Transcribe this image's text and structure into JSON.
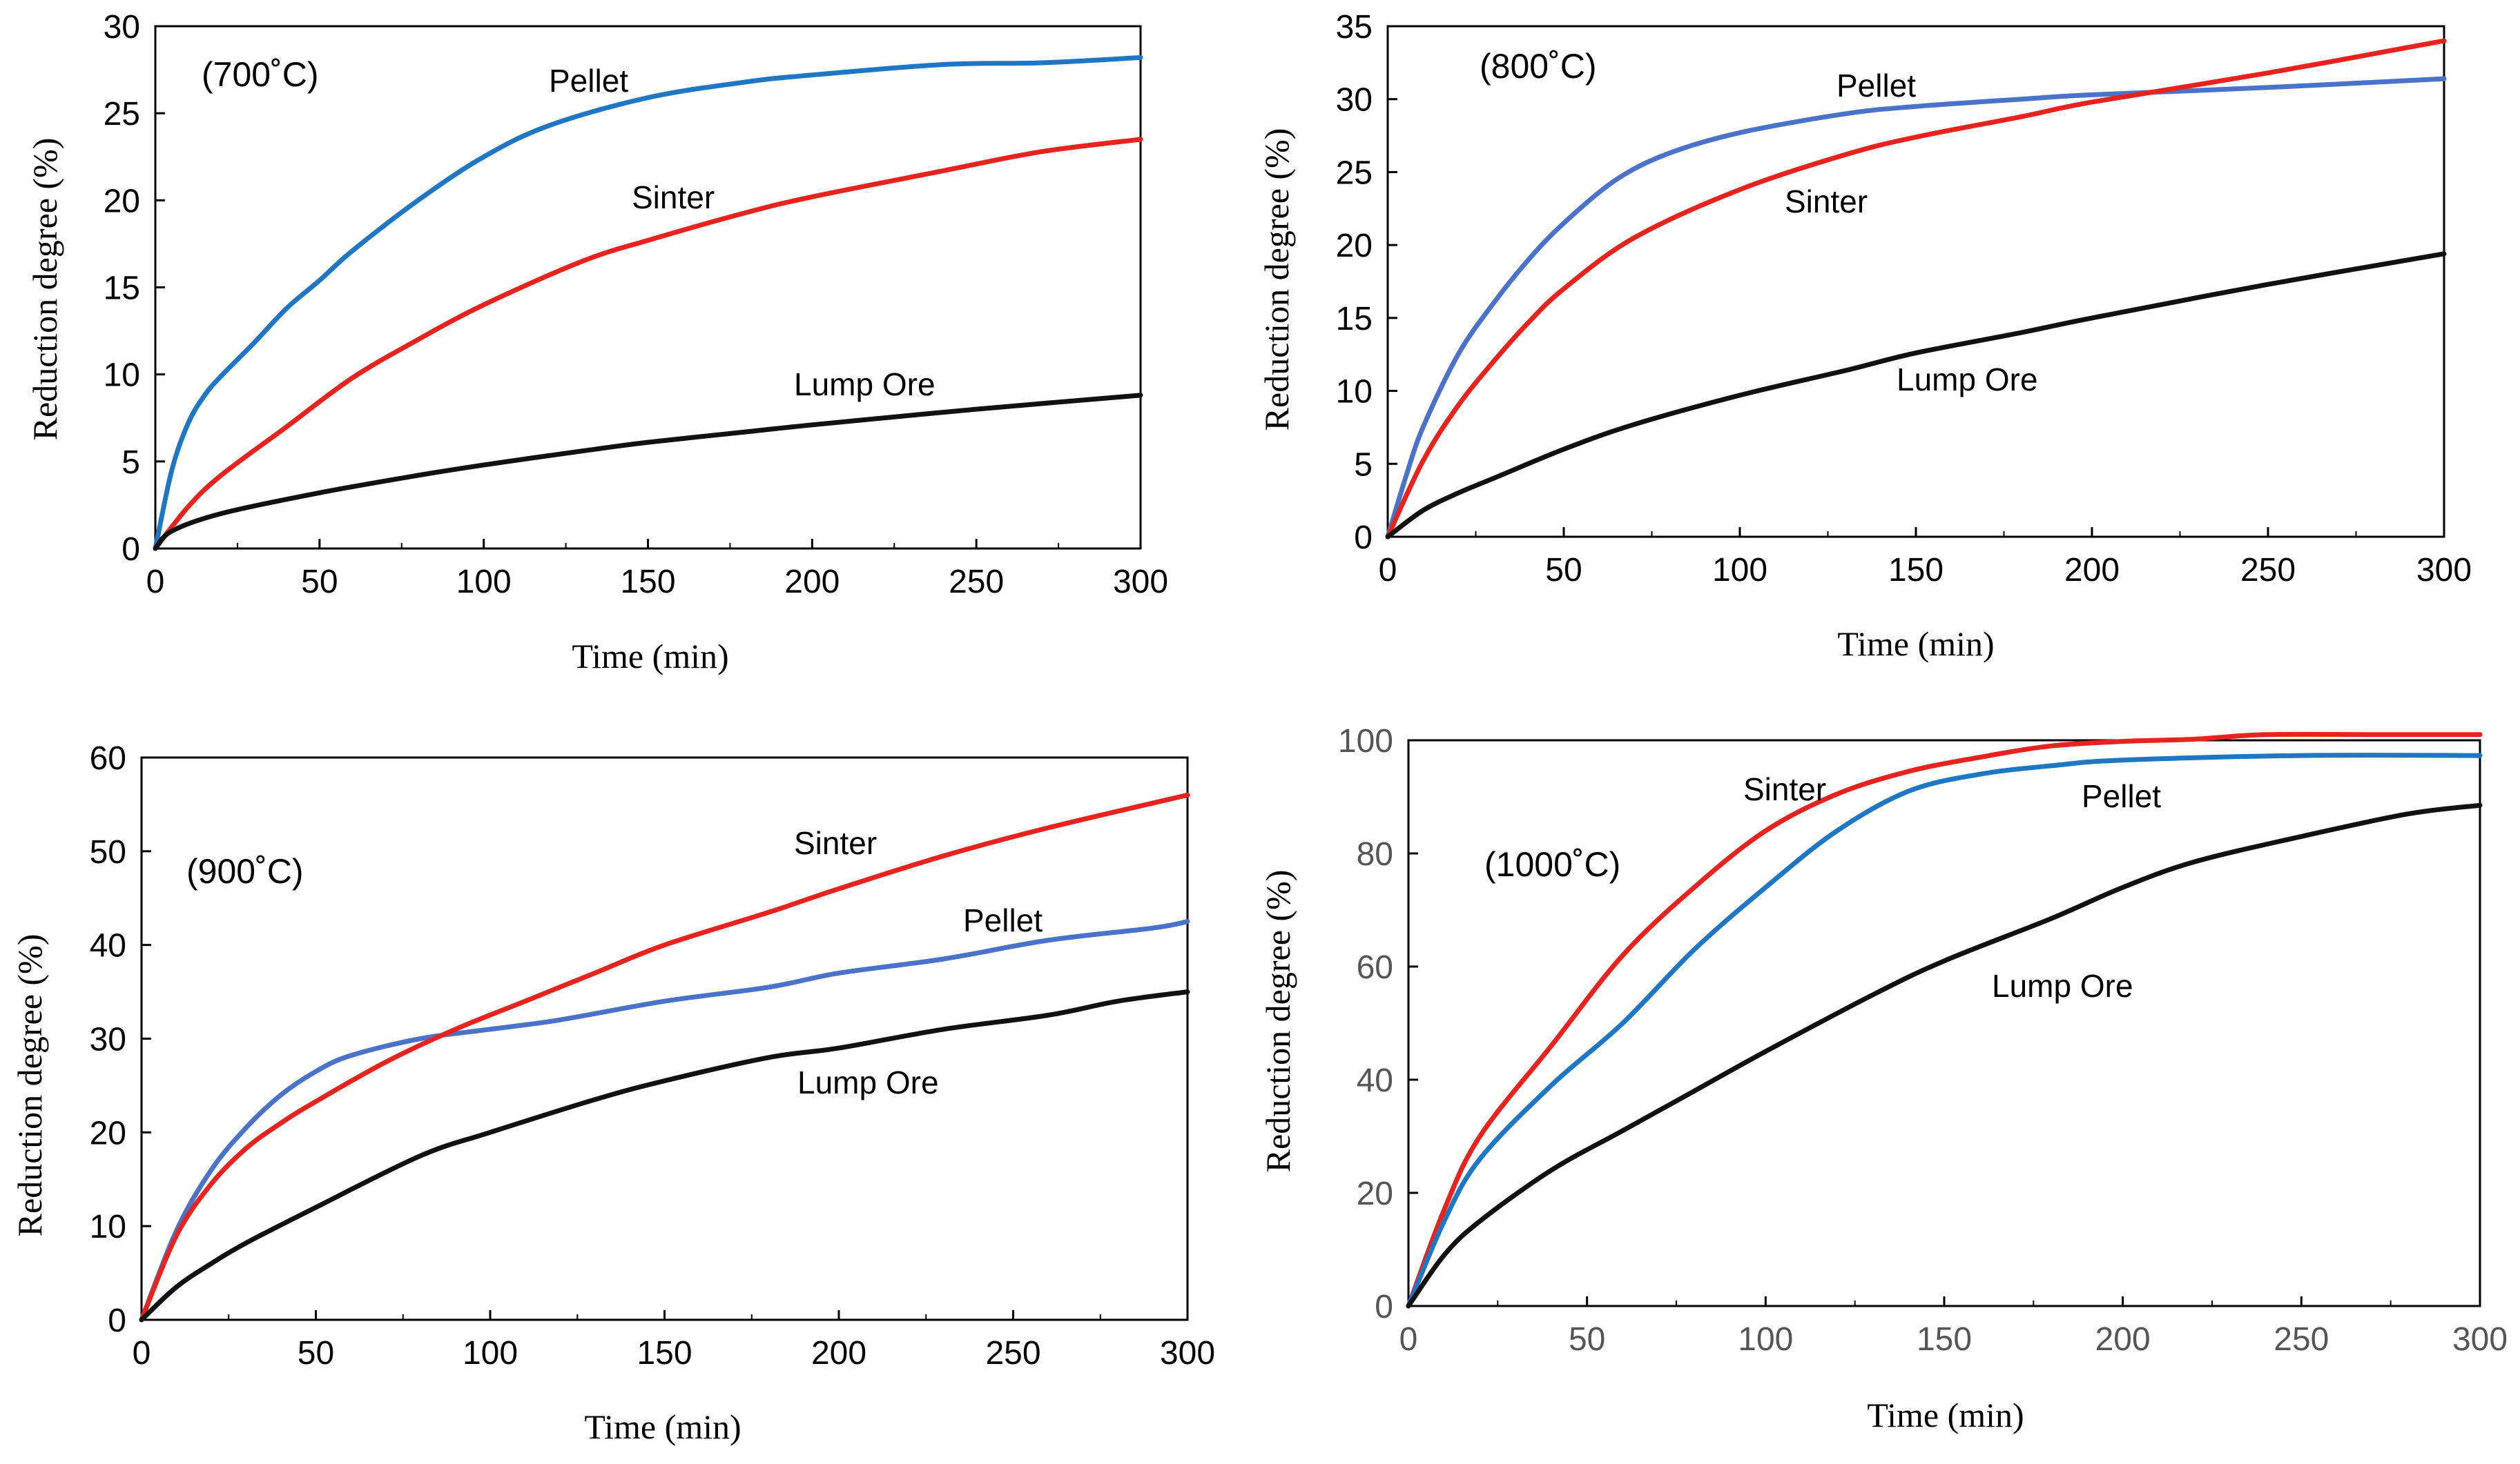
{
  "figure": "reduction-degree-panels",
  "chart_data": [
    {
      "type": "line",
      "panel_label": "(700˚C)",
      "xlabel": "Time (min)",
      "ylabel": "Reduction degree (%)",
      "xlim": [
        0,
        300
      ],
      "ylim": [
        0,
        30
      ],
      "xticks": [
        0,
        50,
        100,
        150,
        200,
        250,
        300
      ],
      "yticks": [
        0,
        5,
        10,
        15,
        20,
        25,
        30
      ],
      "series": [
        {
          "name": "Pellet",
          "color": "#1f77c4",
          "x": [
            0,
            5,
            10,
            15,
            20,
            30,
            40,
            50,
            60,
            80,
            100,
            120,
            150,
            180,
            200,
            240,
            270,
            300
          ],
          "y": [
            0,
            4.5,
            7.2,
            8.8,
            9.9,
            11.8,
            13.8,
            15.4,
            17.1,
            20.0,
            22.5,
            24.3,
            25.9,
            26.8,
            27.2,
            27.8,
            27.9,
            28.2
          ]
        },
        {
          "name": "Sinter",
          "color": "#e8231d",
          "x": [
            0,
            10,
            20,
            40,
            60,
            80,
            100,
            130,
            150,
            180,
            200,
            240,
            270,
            300
          ],
          "y": [
            0,
            2.4,
            4.2,
            7.0,
            9.8,
            12.0,
            14.0,
            16.5,
            17.7,
            19.3,
            20.2,
            21.7,
            22.8,
            23.5
          ]
        },
        {
          "name": "Lump Ore",
          "color": "#111111",
          "x": [
            0,
            5,
            20,
            50,
            80,
            100,
            130,
            150,
            180,
            200,
            250,
            300
          ],
          "y": [
            0,
            1.0,
            2.0,
            3.2,
            4.2,
            4.8,
            5.6,
            6.1,
            6.7,
            7.1,
            8.0,
            8.8
          ]
        }
      ]
    },
    {
      "type": "line",
      "panel_label": "(800˚C)",
      "xlabel": "Time (min)",
      "ylabel": "Reduction degree (%)",
      "xlim": [
        0,
        300
      ],
      "ylim": [
        0,
        35
      ],
      "xticks": [
        0,
        50,
        100,
        150,
        200,
        250,
        300
      ],
      "yticks": [
        0,
        5,
        10,
        15,
        20,
        25,
        30,
        35
      ],
      "series": [
        {
          "name": "Pellet",
          "color": "#4a72c9",
          "x": [
            0,
            5,
            10,
            20,
            30,
            40,
            50,
            65,
            80,
            100,
            130,
            150,
            180,
            200,
            250,
            300
          ],
          "y": [
            0,
            4.0,
            7.5,
            12.5,
            16.0,
            19.0,
            21.5,
            24.5,
            26.3,
            27.7,
            29.0,
            29.5,
            30.0,
            30.3,
            30.8,
            31.4
          ]
        },
        {
          "name": "Sinter",
          "color": "#e8231d",
          "x": [
            0,
            10,
            20,
            30,
            40,
            50,
            70,
            100,
            130,
            150,
            180,
            200,
            250,
            300
          ],
          "y": [
            0,
            5.2,
            9.0,
            12.0,
            14.7,
            17.0,
            20.5,
            23.8,
            26.2,
            27.4,
            28.8,
            29.8,
            31.8,
            34.0
          ]
        },
        {
          "name": "Lump Ore",
          "color": "#111111",
          "x": [
            0,
            10,
            20,
            30,
            50,
            70,
            100,
            130,
            150,
            180,
            200,
            250,
            300
          ],
          "y": [
            0,
            1.8,
            3.0,
            4.0,
            6.0,
            7.7,
            9.7,
            11.4,
            12.6,
            14.0,
            15.0,
            17.3,
            19.4
          ]
        }
      ]
    },
    {
      "type": "line",
      "panel_label": "(900˚C)",
      "xlabel": "Time (min)",
      "ylabel": "Reduction degree (%)",
      "xlim": [
        0,
        300
      ],
      "ylim": [
        0,
        60
      ],
      "xticks": [
        0,
        50,
        100,
        150,
        200,
        250,
        300
      ],
      "yticks": [
        0,
        10,
        20,
        30,
        40,
        50,
        60
      ],
      "series": [
        {
          "name": "Pellet",
          "color": "#4a72c9",
          "x": [
            0,
            10,
            20,
            30,
            40,
            50,
            60,
            80,
            100,
            120,
            150,
            180,
            200,
            230,
            260,
            290,
            300
          ],
          "y": [
            0,
            9.5,
            16.0,
            20.5,
            24.0,
            26.5,
            28.2,
            30.0,
            31.0,
            32.0,
            34.0,
            35.5,
            37.0,
            38.5,
            40.5,
            41.8,
            42.5
          ]
        },
        {
          "name": "Sinter",
          "color": "#e8231d",
          "x": [
            0,
            10,
            20,
            30,
            40,
            50,
            70,
            90,
            110,
            130,
            150,
            180,
            200,
            230,
            260,
            300
          ],
          "y": [
            0,
            9.0,
            14.5,
            18.3,
            21.0,
            23.3,
            27.5,
            31.0,
            34.0,
            37.0,
            40.0,
            43.5,
            46.0,
            49.5,
            52.5,
            56.0
          ]
        },
        {
          "name": "Lump Ore",
          "color": "#111111",
          "x": [
            0,
            10,
            20,
            30,
            50,
            80,
            100,
            130,
            150,
            180,
            200,
            230,
            260,
            280,
            300
          ],
          "y": [
            0,
            3.5,
            6.0,
            8.2,
            12.0,
            17.5,
            20.0,
            23.5,
            25.5,
            28.0,
            29.0,
            31.0,
            32.5,
            34.0,
            35.0
          ]
        }
      ]
    },
    {
      "type": "line",
      "panel_label": "(1000˚C)",
      "xlabel": "Time (min)",
      "ylabel": "Reduction degree (%)",
      "xlim": [
        0,
        300
      ],
      "ylim": [
        0,
        100
      ],
      "xticks": [
        0,
        50,
        100,
        150,
        200,
        250,
        300
      ],
      "yticks": [
        0,
        20,
        40,
        60,
        80,
        100
      ],
      "series": [
        {
          "name": "Sinter",
          "color": "#e8231d",
          "x": [
            0,
            10,
            20,
            40,
            60,
            80,
            100,
            120,
            140,
            160,
            180,
            200,
            220,
            240,
            270,
            300
          ],
          "y": [
            0,
            17.0,
            30.0,
            46.0,
            62.0,
            74.0,
            84.0,
            90.5,
            94.5,
            97.0,
            99.0,
            99.8,
            100.2,
            101.0,
            101.0,
            101.0
          ]
        },
        {
          "name": "Pellet",
          "color": "#1f77c4",
          "x": [
            0,
            10,
            20,
            40,
            60,
            80,
            100,
            120,
            140,
            160,
            180,
            200,
            250,
            300
          ],
          "y": [
            0,
            15.0,
            26.0,
            39.0,
            50.0,
            63.0,
            74.0,
            84.0,
            91.0,
            94.0,
            95.5,
            96.5,
            97.3,
            97.3
          ]
        },
        {
          "name": "Lump Ore",
          "color": "#111111",
          "x": [
            0,
            10,
            20,
            40,
            60,
            80,
            100,
            130,
            150,
            180,
            200,
            220,
            250,
            280,
            300
          ],
          "y": [
            0,
            9.0,
            15.0,
            24.0,
            31.0,
            38.0,
            45.0,
            55.0,
            61.0,
            68.5,
            74.0,
            78.5,
            83.0,
            87.0,
            88.5
          ]
        }
      ]
    }
  ]
}
